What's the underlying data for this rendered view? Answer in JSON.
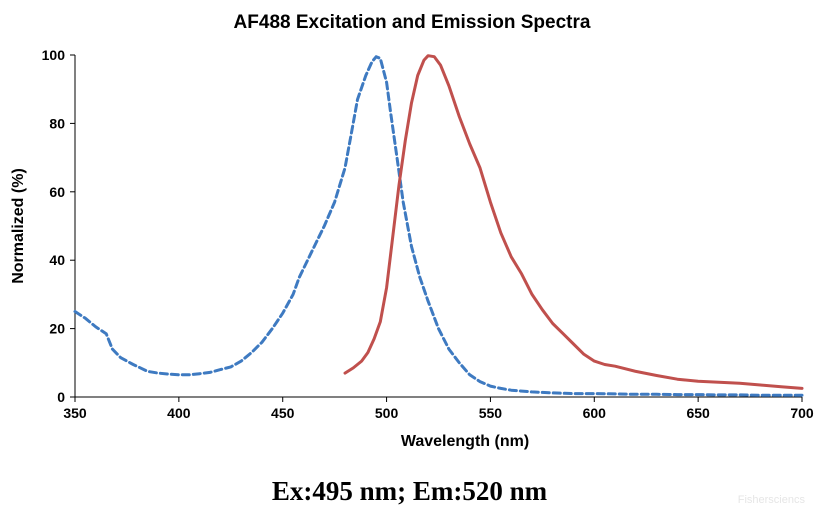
{
  "chart_data": {
    "type": "line",
    "title": "AF488 Excitation and Emission Spectra",
    "xlabel": "Wavelength (nm)",
    "ylabel": "Normalized (%)",
    "xlim": [
      350,
      700
    ],
    "ylim": [
      0,
      100
    ],
    "x_ticks": [
      350,
      400,
      450,
      500,
      550,
      600,
      650,
      700
    ],
    "y_ticks": [
      0,
      20,
      40,
      60,
      80,
      100
    ],
    "grid": false,
    "series": [
      {
        "key": "excitation",
        "style": "dashed",
        "color": "#3e7ac1",
        "x": [
          350,
          355,
          360,
          365,
          368,
          372,
          378,
          385,
          390,
          395,
          400,
          405,
          410,
          415,
          420,
          425,
          430,
          435,
          440,
          445,
          450,
          455,
          458,
          462,
          466,
          470,
          475,
          480,
          483,
          486,
          490,
          493,
          495,
          497,
          500,
          502,
          505,
          508,
          512,
          516,
          520,
          525,
          530,
          535,
          540,
          545,
          550,
          555,
          560,
          570,
          580,
          590,
          600,
          610,
          620,
          630,
          640,
          650,
          660,
          670,
          680,
          690,
          700
        ],
        "y": [
          25,
          23,
          20.5,
          18.5,
          14,
          11.5,
          9.5,
          7.5,
          7,
          6.7,
          6.5,
          6.5,
          6.8,
          7.2,
          8,
          8.8,
          10.5,
          13,
          16,
          20,
          24.5,
          30,
          35,
          40,
          45,
          50,
          57,
          67,
          77,
          87,
          94,
          98,
          99.5,
          99,
          92,
          83,
          70,
          57,
          44,
          35,
          28,
          20,
          14,
          10,
          6.5,
          4.5,
          3.2,
          2.5,
          2,
          1.5,
          1.2,
          1,
          1,
          0.9,
          0.8,
          0.8,
          0.7,
          0.7,
          0.6,
          0.6,
          0.5,
          0.5,
          0.5
        ]
      },
      {
        "key": "emission",
        "style": "solid",
        "color": "#c0504d",
        "x": [
          480,
          484,
          488,
          491,
          494,
          497,
          500,
          503,
          506,
          509,
          512,
          515,
          518,
          520,
          523,
          526,
          530,
          535,
          540,
          545,
          550,
          555,
          560,
          565,
          570,
          575,
          580,
          585,
          590,
          595,
          600,
          605,
          610,
          620,
          630,
          640,
          650,
          660,
          670,
          680,
          690,
          700
        ],
        "y": [
          7,
          8.5,
          10.5,
          13,
          17,
          22,
          32,
          47,
          62,
          75,
          86,
          94,
          98.5,
          99.8,
          99.5,
          97,
          91,
          82,
          74,
          67,
          57,
          48,
          41,
          36,
          30,
          25.5,
          21.5,
          18.5,
          15.5,
          12.5,
          10.5,
          9.5,
          9,
          7.5,
          6.3,
          5.2,
          4.6,
          4.3,
          4,
          3.5,
          3,
          2.5
        ]
      }
    ]
  },
  "caption": "Ex:495 nm; Em:520 nm",
  "watermark": "Fishersciencs"
}
